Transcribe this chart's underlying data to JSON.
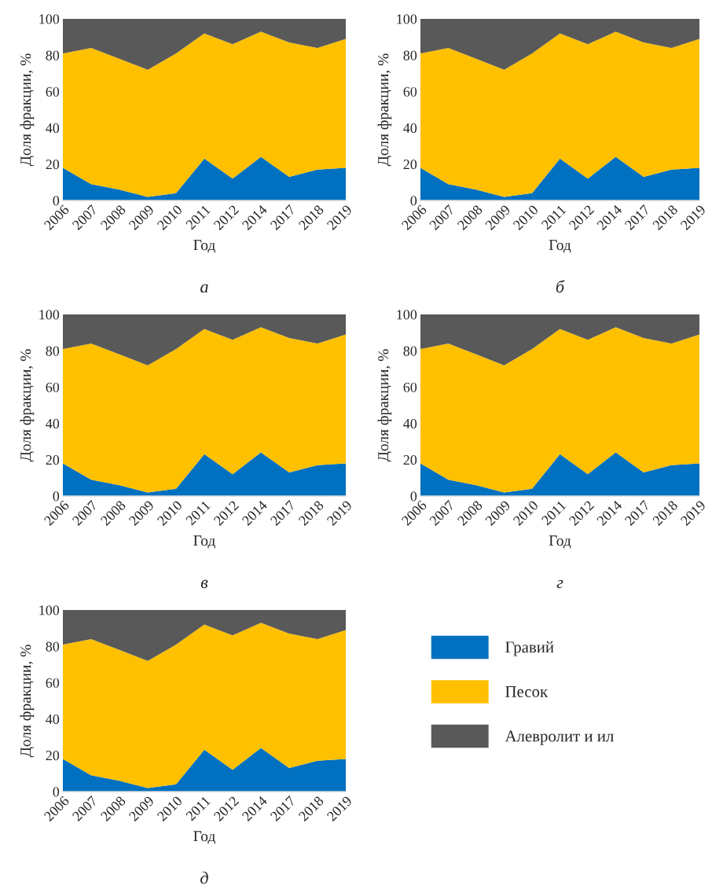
{
  "chart_data": [
    {
      "type": "area",
      "stacked": true,
      "xlabel": "Год",
      "ylabel": "Доля фракции, %",
      "annotations": [
        "а"
      ],
      "categories": [
        "2006",
        "2007",
        "2008",
        "2009",
        "2010",
        "2011",
        "2012",
        "2014",
        "2017",
        "2018",
        "2019"
      ],
      "ylim": [
        0,
        100
      ],
      "yticks": [
        0,
        20,
        40,
        60,
        80,
        100
      ],
      "legend": false,
      "series": [
        {
          "color": "#0070c0",
          "values": [
            18,
            9,
            6,
            2,
            4,
            23,
            12,
            24,
            13,
            17,
            18
          ]
        },
        {
          "color": "#ffc000",
          "values": [
            63,
            75,
            72,
            70,
            77,
            69,
            74,
            69,
            74,
            67,
            71
          ]
        },
        {
          "color": "#595959",
          "values": [
            19,
            16,
            22,
            28,
            19,
            8,
            14,
            7,
            13,
            16,
            11
          ]
        }
      ]
    },
    {
      "type": "area",
      "stacked": true,
      "xlabel": "Год",
      "ylabel": "Доля фракции, %",
      "annotations": [
        "б"
      ],
      "categories": [
        "2006",
        "2007",
        "2008",
        "2009",
        "2010",
        "2011",
        "2012",
        "2014",
        "2017",
        "2018",
        "2019"
      ],
      "ylim": [
        0,
        100
      ],
      "yticks": [
        0,
        20,
        40,
        60,
        80,
        100
      ],
      "legend": false,
      "series": [
        {
          "color": "#0070c0",
          "values": [
            18,
            9,
            6,
            2,
            4,
            23,
            12,
            24,
            13,
            17,
            18
          ]
        },
        {
          "color": "#ffc000",
          "values": [
            63,
            75,
            72,
            70,
            77,
            69,
            74,
            69,
            74,
            67,
            71
          ]
        },
        {
          "color": "#595959",
          "values": [
            19,
            16,
            22,
            28,
            19,
            8,
            14,
            7,
            13,
            16,
            11
          ]
        }
      ]
    },
    {
      "type": "area",
      "stacked": true,
      "xlabel": "Год",
      "ylabel": "Доля фракции, %",
      "annotations": [
        "в"
      ],
      "categories": [
        "2006",
        "2007",
        "2008",
        "2009",
        "2010",
        "2011",
        "2012",
        "2014",
        "2017",
        "2018",
        "2019"
      ],
      "ylim": [
        0,
        100
      ],
      "yticks": [
        0,
        20,
        40,
        60,
        80,
        100
      ],
      "legend": false,
      "series": [
        {
          "color": "#0070c0",
          "values": [
            18,
            9,
            6,
            2,
            4,
            23,
            12,
            24,
            13,
            17,
            18
          ]
        },
        {
          "color": "#ffc000",
          "values": [
            63,
            75,
            72,
            70,
            77,
            69,
            74,
            69,
            74,
            67,
            71
          ]
        },
        {
          "color": "#595959",
          "values": [
            19,
            16,
            22,
            28,
            19,
            8,
            14,
            7,
            13,
            16,
            11
          ]
        }
      ]
    },
    {
      "type": "area",
      "stacked": true,
      "xlabel": "Год",
      "ylabel": "Доля фракции, %",
      "annotations": [
        "г"
      ],
      "categories": [
        "2006",
        "2007",
        "2008",
        "2009",
        "2010",
        "2011",
        "2012",
        "2014",
        "2017",
        "2018",
        "2019"
      ],
      "ylim": [
        0,
        100
      ],
      "yticks": [
        0,
        20,
        40,
        60,
        80,
        100
      ],
      "legend": false,
      "series": [
        {
          "color": "#0070c0",
          "values": [
            18,
            9,
            6,
            2,
            4,
            23,
            12,
            24,
            13,
            17,
            18
          ]
        },
        {
          "color": "#ffc000",
          "values": [
            63,
            75,
            72,
            70,
            77,
            69,
            74,
            69,
            74,
            67,
            71
          ]
        },
        {
          "color": "#595959",
          "values": [
            19,
            16,
            22,
            28,
            19,
            8,
            14,
            7,
            13,
            16,
            11
          ]
        }
      ]
    },
    {
      "type": "area",
      "stacked": true,
      "xlabel": "Год",
      "ylabel": "Доля фракции, %",
      "annotations": [
        "д"
      ],
      "categories": [
        "2006",
        "2007",
        "2008",
        "2009",
        "2010",
        "2011",
        "2012",
        "2014",
        "2017",
        "2018",
        "2019"
      ],
      "ylim": [
        0,
        100
      ],
      "yticks": [
        0,
        20,
        40,
        60,
        80,
        100
      ],
      "legend": "right",
      "series": [
        {
          "name": "Гравий",
          "color": "#0070c0",
          "values": [
            18,
            9,
            6,
            2,
            4,
            23,
            12,
            24,
            13,
            17,
            18
          ]
        },
        {
          "name": "Песок",
          "color": "#ffc000",
          "values": [
            63,
            75,
            72,
            70,
            77,
            69,
            74,
            69,
            74,
            67,
            71
          ]
        },
        {
          "name": "Алевролит и ил",
          "color": "#595959",
          "values": [
            19,
            16,
            22,
            28,
            19,
            8,
            14,
            7,
            13,
            16,
            11
          ]
        }
      ]
    }
  ]
}
